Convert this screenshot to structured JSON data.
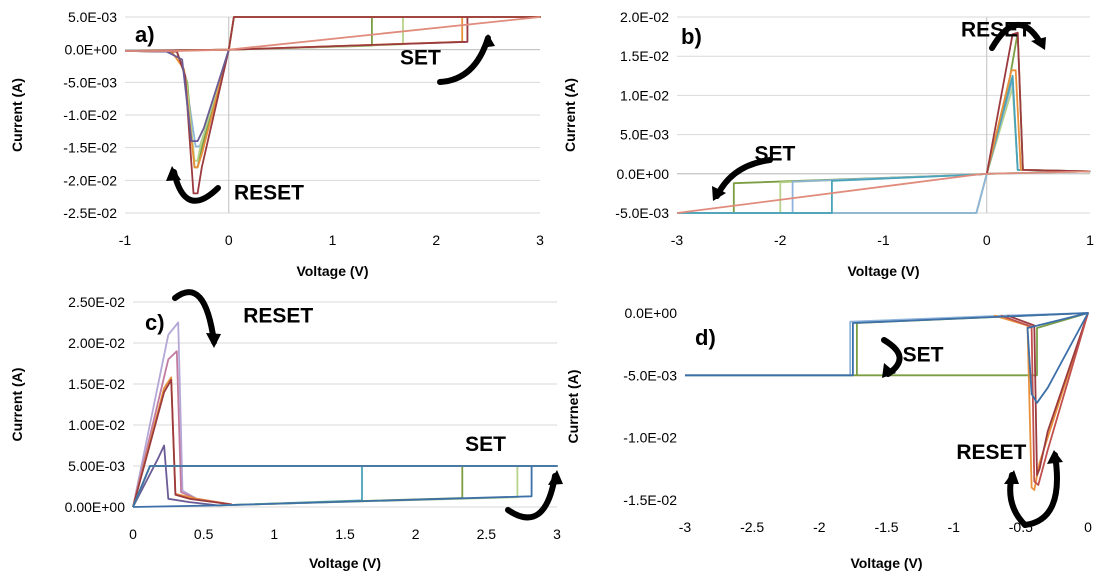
{
  "chart_data": [
    {
      "type": "line",
      "panel_label": "a)",
      "xlabel": "Voltage (V)",
      "ylabel": "Current (A)",
      "xlim": [
        -1,
        3
      ],
      "ylim": [
        -0.025,
        0.005
      ],
      "x_ticks": [
        "-1",
        "0",
        "1",
        "2",
        "3"
      ],
      "y_ticks": [
        "5.0E-03",
        "0.0E+00",
        "-5.0E-03",
        "-1.0E-02",
        "-1.5E-02",
        "-2.0E-02",
        "-2.5E-02"
      ],
      "x_tick_values": [
        -1,
        0,
        1,
        2,
        3
      ],
      "y_tick_values": [
        0.005,
        0,
        -0.005,
        -0.01,
        -0.015,
        -0.02,
        -0.025
      ],
      "grid": true,
      "annotations": [
        {
          "text": "SET",
          "x": 1.65,
          "y": -0.0023
        },
        {
          "text": "RESET",
          "x": 0.05,
          "y": -0.0229
        }
      ],
      "series": [
        {
          "color": "#8fb4db",
          "x": [
            -1,
            -0.5,
            -0.42,
            -0.32,
            -0.28,
            -0.22,
            0,
            0.05,
            3,
            2.3,
            2.3,
            0,
            -1
          ],
          "y": [
            -0.0002,
            -0.0003,
            -0.004,
            -0.0148,
            -0.0148,
            -0.012,
            0,
            0.005,
            0.005,
            0.005,
            0.0012,
            0,
            -0.0002
          ]
        },
        {
          "color": "#7b9e45",
          "x": [
            -1,
            -0.5,
            -0.4,
            -0.33,
            -0.3,
            -0.26,
            0,
            0.05,
            3,
            1.38,
            1.38,
            0,
            -1
          ],
          "y": [
            -0.0002,
            -0.0003,
            -0.005,
            -0.018,
            -0.018,
            -0.015,
            0,
            0.005,
            0.005,
            0.005,
            0.0006,
            0,
            -0.0002
          ]
        },
        {
          "color": "#b7d38b",
          "x": [
            -1,
            -0.5,
            -0.41,
            -0.33,
            -0.3,
            -0.27,
            0,
            0.05,
            3,
            1.68,
            1.68,
            0,
            -1
          ],
          "y": [
            -0.0002,
            -0.0003,
            -0.0045,
            -0.017,
            -0.017,
            -0.0145,
            0,
            0.005,
            0.005,
            0.005,
            0.0008,
            0,
            -0.0002
          ]
        },
        {
          "color": "#e8913a",
          "x": [
            -1,
            -0.55,
            -0.43,
            -0.33,
            -0.3,
            -0.26,
            0,
            0.05,
            3,
            2.25,
            2.25,
            0,
            -1
          ],
          "y": [
            -0.0002,
            -0.0003,
            -0.003,
            -0.018,
            -0.018,
            -0.016,
            0,
            0.005,
            0.005,
            0.005,
            0.0012,
            0,
            -0.0002
          ]
        },
        {
          "color": "#9b3a3f",
          "x": [
            -1,
            -0.5,
            -0.42,
            -0.34,
            -0.3,
            -0.26,
            0,
            0.05,
            3,
            2.3,
            2.3,
            0,
            -1
          ],
          "y": [
            -0.0002,
            -0.0003,
            -0.004,
            -0.022,
            -0.022,
            -0.018,
            0,
            0.005,
            0.005,
            0.005,
            0.0012,
            0,
            -0.0002
          ]
        },
        {
          "color": "#6b5b95",
          "x": [
            -1,
            -0.6,
            -0.45,
            -0.36,
            -0.3,
            -0.24,
            0
          ],
          "y": [
            -0.0002,
            -0.0003,
            -0.0015,
            -0.014,
            -0.014,
            -0.012,
            0
          ]
        },
        {
          "color": "#e08c7c",
          "x": [
            -1,
            -0.5,
            0,
            3
          ],
          "y": [
            -0.0002,
            -0.0002,
            0,
            0.005
          ]
        }
      ]
    },
    {
      "type": "line",
      "panel_label": "b)",
      "xlabel": "Voltage (V)",
      "ylabel": "Current (A)",
      "xlim": [
        -3,
        1
      ],
      "ylim": [
        -0.005,
        0.02
      ],
      "x_ticks": [
        "-3",
        "-2",
        "-1",
        "0",
        "1"
      ],
      "y_ticks": [
        "2.0E-02",
        "1.5E-02",
        "1.0E-02",
        "5.0E-03",
        "0.0E+00",
        "-5.0E-03"
      ],
      "x_tick_values": [
        -3,
        -2,
        -1,
        0,
        1
      ],
      "y_tick_values": [
        0.02,
        0.015,
        0.01,
        0.005,
        0,
        -0.005
      ],
      "grid": true,
      "annotations": [
        {
          "text": "SET",
          "x": -2.25,
          "y": 0.0017
        },
        {
          "text": "RESET",
          "x": -0.25,
          "y": 0.0175
        }
      ],
      "series": [
        {
          "color": "#7b9e45",
          "x": [
            -3,
            -2.45,
            -2.45,
            -0.1,
            0,
            0.22,
            0.3,
            0.35,
            1,
            0,
            -0.1,
            -3
          ],
          "y": [
            -0.005,
            -0.005,
            -0.0012,
            -0.0001,
            0,
            0.012,
            0.018,
            0.0005,
            0.0003,
            0,
            -0.005,
            -0.005
          ]
        },
        {
          "color": "#b7d38b",
          "x": [
            -3,
            -2.0,
            -2.0,
            -0.1,
            0,
            0.25,
            0.3,
            1,
            0,
            -0.1,
            -3
          ],
          "y": [
            -0.005,
            -0.005,
            -0.0011,
            -0.0001,
            0,
            0.011,
            0.0005,
            0.0003,
            0,
            -0.005,
            -0.005
          ]
        },
        {
          "color": "#8fb4db",
          "x": [
            -3,
            -1.88,
            -1.88,
            -0.1,
            0,
            0.25,
            0.3,
            1,
            0,
            -0.1,
            -3
          ],
          "y": [
            -0.005,
            -0.005,
            -0.001,
            -0.0001,
            0,
            0.012,
            0.0005,
            0.0003,
            0,
            -0.005,
            -0.005
          ]
        },
        {
          "color": "#4aa3b8",
          "x": [
            -3,
            -1.5,
            -1.5,
            -0.1,
            0,
            0.25,
            0.3,
            1
          ],
          "y": [
            -0.005,
            -0.005,
            -0.0009,
            -0.0001,
            0,
            0.0125,
            0.0005,
            0.0003
          ]
        },
        {
          "color": "#e8913a",
          "x": [
            0,
            0.24,
            0.28,
            0.33,
            1
          ],
          "y": [
            0,
            0.0132,
            0.0132,
            0.0005,
            0.0003
          ]
        },
        {
          "color": "#9b3a3f",
          "x": [
            0,
            0.25,
            0.3,
            0.35,
            1
          ],
          "y": [
            0,
            0.0178,
            0.018,
            0.0005,
            0.0003
          ]
        },
        {
          "color": "#e08c7c",
          "x": [
            -3,
            -0.1,
            0,
            1
          ],
          "y": [
            -0.005,
            -0.0001,
            0,
            0.0003
          ]
        }
      ]
    },
    {
      "type": "line",
      "panel_label": "c)",
      "xlabel": "Voltage (V)",
      "ylabel": "Current (A)",
      "xlim": [
        0,
        3
      ],
      "ylim": [
        0,
        0.025
      ],
      "x_ticks": [
        "0",
        "0.5",
        "1",
        "1.5",
        "2",
        "2.5",
        "3"
      ],
      "y_ticks": [
        "2.50E-02",
        "2.00E-02",
        "1.50E-02",
        "1.00E-02",
        "5.00E-03",
        "0.00E+00"
      ],
      "x_tick_values": [
        0,
        0.5,
        1,
        1.5,
        2,
        2.5,
        3
      ],
      "y_tick_values": [
        0.025,
        0.02,
        0.015,
        0.01,
        0.005,
        0
      ],
      "grid": true,
      "annotations": [
        {
          "text": "RESET",
          "x": 0.78,
          "y": 0.0225
        },
        {
          "text": "SET",
          "x": 2.35,
          "y": 0.0068
        }
      ],
      "series": [
        {
          "color": "#b4a7d6",
          "x": [
            0,
            0.25,
            0.32,
            0.35,
            0.45,
            0.7
          ],
          "y": [
            0,
            0.021,
            0.0225,
            0.002,
            0.001,
            0.0003
          ]
        },
        {
          "color": "#c27ba0",
          "x": [
            0,
            0.25,
            0.31,
            0.34,
            0.45,
            0.7
          ],
          "y": [
            0,
            0.018,
            0.019,
            0.0018,
            0.001,
            0.0003
          ]
        },
        {
          "color": "#e8913a",
          "x": [
            0,
            0.22,
            0.27,
            0.3,
            0.45,
            0.7
          ],
          "y": [
            0,
            0.0145,
            0.0158,
            0.0016,
            0.001,
            0.0003
          ]
        },
        {
          "color": "#9b3a3f",
          "x": [
            0,
            0.22,
            0.27,
            0.3,
            0.4,
            0.7
          ],
          "y": [
            0,
            0.014,
            0.0155,
            0.0015,
            0.001,
            0.0003
          ]
        },
        {
          "color": "#6b5b95",
          "x": [
            0,
            0.18,
            0.22,
            0.25,
            0.4,
            0.6
          ],
          "y": [
            0,
            0.006,
            0.0075,
            0.001,
            0.0006,
            0.0002
          ]
        },
        {
          "color": "#4aa3b8",
          "x": [
            0,
            0.12,
            3,
            1.62,
            1.62,
            0.6
          ],
          "y": [
            0,
            0.005,
            0.005,
            0.005,
            0.0008,
            0.0002
          ]
        },
        {
          "color": "#7b9e45",
          "x": [
            0,
            0.12,
            3,
            2.33,
            2.33,
            0.6
          ],
          "y": [
            0,
            0.005,
            0.005,
            0.005,
            0.0011,
            0.0002
          ]
        },
        {
          "color": "#b7d38b",
          "x": [
            0,
            0.12,
            3,
            2.72,
            2.72,
            0.6
          ],
          "y": [
            0,
            0.005,
            0.005,
            0.005,
            0.0012,
            0.0002
          ]
        },
        {
          "color": "#3d6fa8",
          "x": [
            0,
            0.12,
            3,
            2.82,
            2.82,
            0.6,
            0
          ],
          "y": [
            0,
            0.005,
            0.005,
            0.005,
            0.0013,
            0.0002,
            0
          ]
        }
      ]
    },
    {
      "type": "line",
      "panel_label": "d)",
      "xlabel": "Voltage (V)",
      "ylabel": "Currnet (A)",
      "xlim": [
        -3,
        0
      ],
      "ylim": [
        -0.015,
        0
      ],
      "x_ticks": [
        "-3",
        "-2.5",
        "-2",
        "-1.5",
        "-1",
        "-0.5",
        "0"
      ],
      "y_ticks": [
        "0.0E+00",
        "-5.0E-03",
        "-1.0E-02",
        "-1.5E-02"
      ],
      "x_tick_values": [
        -3,
        -2.5,
        -2,
        -1.5,
        -1,
        -0.5,
        0
      ],
      "y_tick_values": [
        0,
        -0.005,
        -0.01,
        -0.015
      ],
      "grid": false,
      "annotations": [
        {
          "text": "SET",
          "x": -1.38,
          "y": -0.0039
        },
        {
          "text": "RESET",
          "x": -0.98,
          "y": -0.0117
        }
      ],
      "series": [
        {
          "color": "#7b9e45",
          "x": [
            -3,
            -1.72,
            -1.72,
            0,
            -0.38,
            -0.38,
            -3
          ],
          "y": [
            -0.005,
            -0.005,
            -0.0008,
            0,
            -0.0012,
            -0.005,
            -0.005
          ]
        },
        {
          "color": "#8fb4db",
          "x": [
            -3,
            -1.77,
            -1.77,
            -0.6,
            0
          ],
          "y": [
            -0.005,
            -0.005,
            -0.0007,
            -0.0002,
            0
          ]
        },
        {
          "color": "#e8913a",
          "x": [
            -0.7,
            -0.45,
            -0.42,
            -0.4,
            -0.36,
            0
          ],
          "y": [
            -0.0002,
            -0.001,
            -0.014,
            -0.0142,
            -0.012,
            0
          ]
        },
        {
          "color": "#9b3a3f",
          "x": [
            -0.6,
            -0.4,
            -0.38,
            -0.36,
            -0.3,
            0
          ],
          "y": [
            -0.0002,
            -0.001,
            -0.013,
            -0.0125,
            -0.0095,
            0
          ]
        },
        {
          "color": "#c0504d",
          "x": [
            -0.65,
            -0.42,
            -0.4,
            -0.37,
            -0.3,
            0
          ],
          "y": [
            -0.0002,
            -0.0011,
            -0.0135,
            -0.0138,
            -0.011,
            0
          ]
        },
        {
          "color": "#3d6fa8",
          "x": [
            -3,
            -1.75,
            -1.75,
            0,
            -0.45,
            -0.42,
            -0.38,
            -0.3,
            0
          ],
          "y": [
            -0.005,
            -0.005,
            -0.0008,
            0,
            -0.0012,
            -0.0065,
            -0.0072,
            -0.006,
            0
          ]
        }
      ]
    }
  ]
}
